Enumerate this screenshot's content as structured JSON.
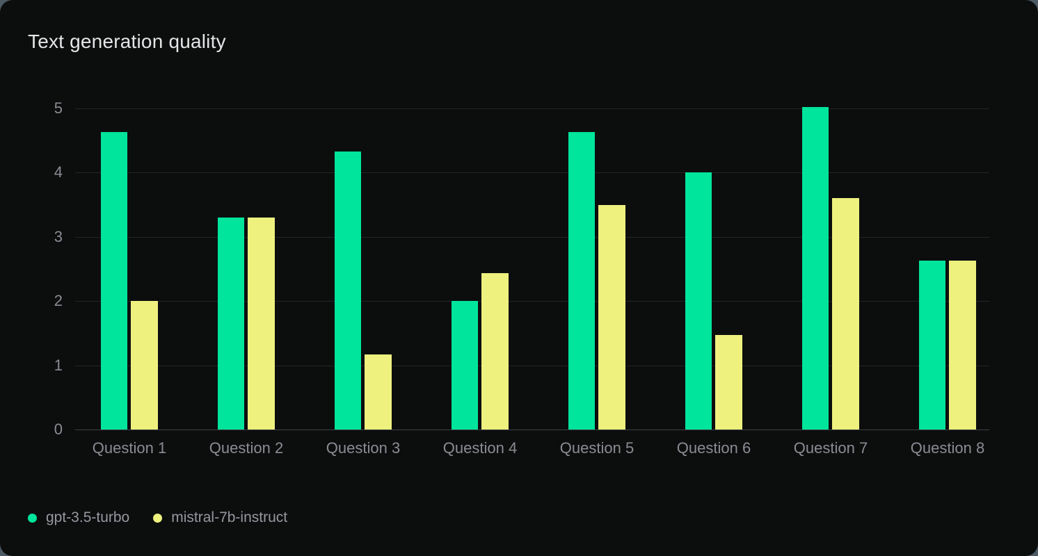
{
  "card": {
    "title": "Text generation quality"
  },
  "colors": {
    "card_background": "#0c0e0e",
    "page_background": "#4d5a64",
    "title_text": "#e4e5e7",
    "axis_text": "#8b8c93",
    "gridline": "#232626",
    "axis_line": "#3d4043",
    "legend_text": "#97979f",
    "series_green": "#00e59c",
    "series_yellow": "#eef17e"
  },
  "chart_data": {
    "type": "bar",
    "title": "Text generation quality",
    "categories": [
      "Question 1",
      "Question 2",
      "Question 3",
      "Question 4",
      "Question 5",
      "Question 6",
      "Question 7",
      "Question 8"
    ],
    "series": [
      {
        "name": "gpt-3.5-turbo",
        "color": "#00e59c",
        "values": [
          4.63,
          3.3,
          4.33,
          2.0,
          4.63,
          4.0,
          5.02,
          2.63
        ]
      },
      {
        "name": "mistral-7b-instruct",
        "color": "#eef17e",
        "values": [
          2.0,
          3.3,
          1.17,
          2.43,
          3.5,
          1.47,
          3.6,
          2.63
        ]
      }
    ],
    "xlabel": "",
    "ylabel": "",
    "ylim": [
      0,
      5
    ],
    "yticks": [
      0,
      1,
      2,
      3,
      4,
      5
    ],
    "grid": true,
    "legend_position": "bottom-left"
  }
}
